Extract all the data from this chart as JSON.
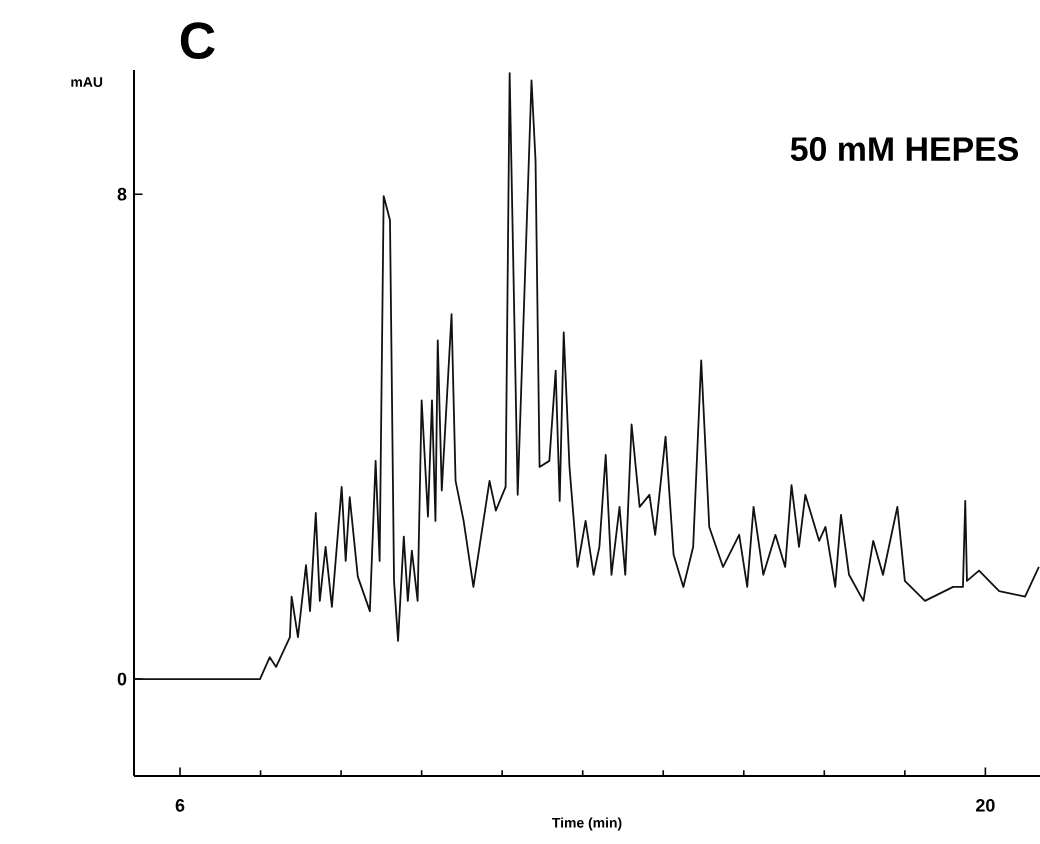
{
  "chart_data": {
    "type": "line",
    "title": "C",
    "xlabel": "Time (min)",
    "ylabel": "mAU",
    "annotations": [
      "50 mM HEPES"
    ],
    "color": "#111111",
    "xlim": [
      5.2,
      20.95
    ],
    "ylim": [
      -1.6,
      10.05
    ],
    "xticks": [
      6,
      20
    ],
    "yticks": [
      0,
      8
    ],
    "grid": false,
    "x": [
      5.2,
      7.39,
      7.56,
      7.67,
      7.91,
      7.94,
      8.05,
      8.19,
      8.26,
      8.36,
      8.43,
      8.53,
      8.64,
      8.81,
      8.88,
      8.95,
      9.09,
      9.3,
      9.4,
      9.47,
      9.54,
      9.65,
      9.72,
      9.79,
      9.89,
      9.96,
      10.03,
      10.13,
      10.2,
      10.31,
      10.38,
      10.44,
      10.48,
      10.55,
      10.72,
      10.79,
      10.93,
      11.1,
      11.38,
      11.49,
      11.66,
      11.73,
      11.87,
      12.11,
      12.18,
      12.25,
      12.42,
      12.53,
      12.6,
      12.67,
      12.77,
      12.91,
      13.05,
      13.19,
      13.29,
      13.4,
      13.5,
      13.64,
      13.74,
      13.85,
      13.99,
      14.16,
      14.26,
      14.44,
      14.58,
      14.75,
      14.92,
      15.06,
      15.2,
      15.44,
      15.72,
      15.86,
      15.97,
      16.14,
      16.35,
      16.52,
      16.63,
      16.76,
      16.87,
      17.11,
      17.22,
      17.39,
      17.49,
      17.63,
      17.88,
      18.05,
      18.22,
      18.47,
      18.6,
      18.95,
      19.44,
      19.61,
      19.65,
      19.68,
      19.89,
      20.24,
      20.69,
      20.93
    ],
    "values": [
      0,
      0,
      0.36,
      0.2,
      0.69,
      1.36,
      0.69,
      1.88,
      1.12,
      2.74,
      1.29,
      2.18,
      1.19,
      3.17,
      1.95,
      3.0,
      1.69,
      1.12,
      3.6,
      1.95,
      7.97,
      7.57,
      1.62,
      0.63,
      2.35,
      1.29,
      2.12,
      1.29,
      4.6,
      2.68,
      4.6,
      2.61,
      5.59,
      3.11,
      6.02,
      3.27,
      2.61,
      1.52,
      3.27,
      2.78,
      3.17,
      10.0,
      3.04,
      9.88,
      8.56,
      3.5,
      3.6,
      5.09,
      2.94,
      5.72,
      3.5,
      1.85,
      2.61,
      1.72,
      2.18,
      3.7,
      1.72,
      2.84,
      1.72,
      4.2,
      2.84,
      3.04,
      2.38,
      4.0,
      2.05,
      1.52,
      2.18,
      5.26,
      2.51,
      1.85,
      2.38,
      1.52,
      2.84,
      1.72,
      2.38,
      1.85,
      3.2,
      2.18,
      3.04,
      2.28,
      2.51,
      1.52,
      2.71,
      1.72,
      1.29,
      2.28,
      1.72,
      2.84,
      1.62,
      1.29,
      1.52,
      1.52,
      2.94,
      1.62,
      1.79,
      1.45,
      1.36,
      1.85
    ]
  }
}
